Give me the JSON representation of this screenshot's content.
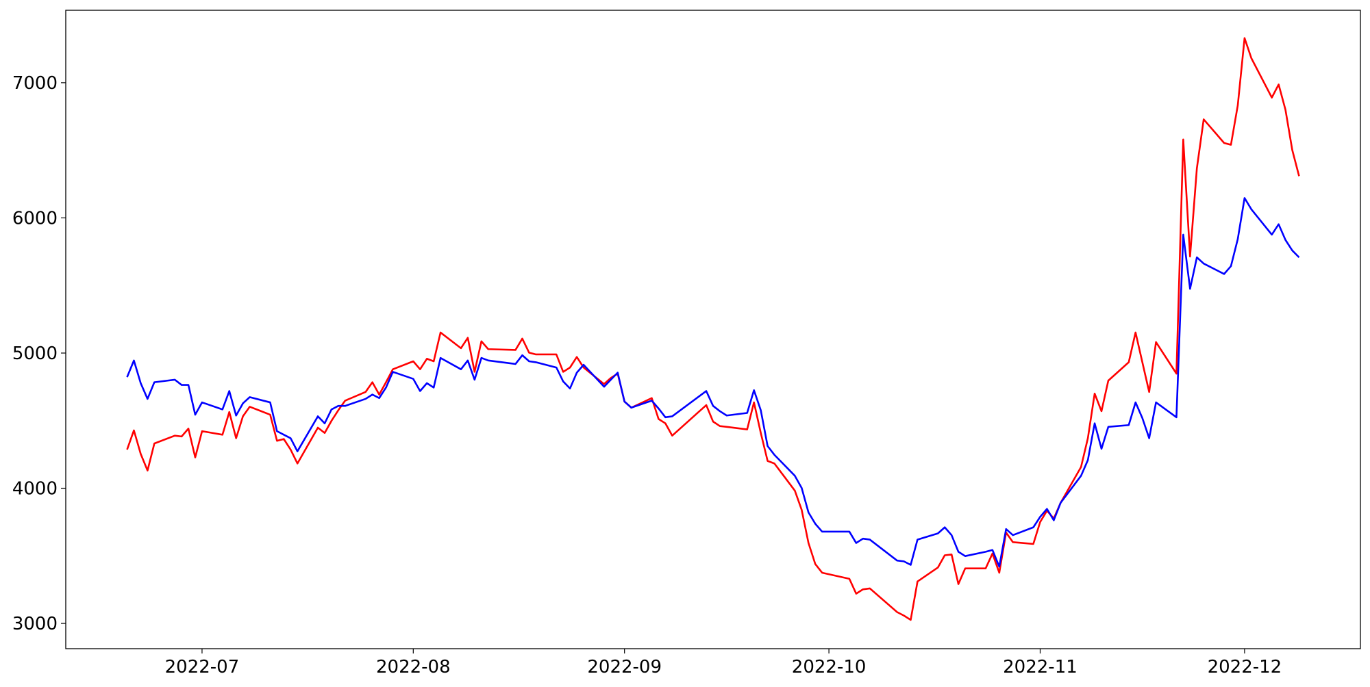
{
  "chart_data": {
    "type": "line",
    "x": [
      "2022-06-20",
      "2022-06-21",
      "2022-06-22",
      "2022-06-23",
      "2022-06-24",
      "2022-06-27",
      "2022-06-28",
      "2022-06-29",
      "2022-06-30",
      "2022-07-01",
      "2022-07-04",
      "2022-07-05",
      "2022-07-06",
      "2022-07-07",
      "2022-07-08",
      "2022-07-11",
      "2022-07-12",
      "2022-07-13",
      "2022-07-14",
      "2022-07-15",
      "2022-07-18",
      "2022-07-19",
      "2022-07-20",
      "2022-07-21",
      "2022-07-22",
      "2022-07-25",
      "2022-07-26",
      "2022-07-27",
      "2022-07-28",
      "2022-07-29",
      "2022-08-01",
      "2022-08-02",
      "2022-08-03",
      "2022-08-04",
      "2022-08-05",
      "2022-08-08",
      "2022-08-09",
      "2022-08-10",
      "2022-08-11",
      "2022-08-12",
      "2022-08-16",
      "2022-08-17",
      "2022-08-18",
      "2022-08-19",
      "2022-08-22",
      "2022-08-23",
      "2022-08-24",
      "2022-08-25",
      "2022-08-26",
      "2022-08-29",
      "2022-08-30",
      "2022-08-31",
      "2022-09-01",
      "2022-09-02",
      "2022-09-05",
      "2022-09-06",
      "2022-09-07",
      "2022-09-08",
      "2022-09-13",
      "2022-09-14",
      "2022-09-15",
      "2022-09-16",
      "2022-09-19",
      "2022-09-20",
      "2022-09-21",
      "2022-09-22",
      "2022-09-23",
      "2022-09-26",
      "2022-09-27",
      "2022-09-28",
      "2022-09-29",
      "2022-09-30",
      "2022-10-04",
      "2022-10-05",
      "2022-10-06",
      "2022-10-07",
      "2022-10-11",
      "2022-10-12",
      "2022-10-13",
      "2022-10-14",
      "2022-10-17",
      "2022-10-18",
      "2022-10-19",
      "2022-10-20",
      "2022-10-21",
      "2022-10-24",
      "2022-10-25",
      "2022-10-26",
      "2022-10-27",
      "2022-10-28",
      "2022-10-31",
      "2022-11-01",
      "2022-11-02",
      "2022-11-03",
      "2022-11-04",
      "2022-11-07",
      "2022-11-08",
      "2022-11-09",
      "2022-11-10",
      "2022-11-11",
      "2022-11-14",
      "2022-11-15",
      "2022-11-16",
      "2022-11-17",
      "2022-11-18",
      "2022-11-21",
      "2022-11-22",
      "2022-11-23",
      "2022-11-24",
      "2022-11-25",
      "2022-11-28",
      "2022-11-29",
      "2022-11-30",
      "2022-12-01",
      "2022-12-02",
      "2022-12-05",
      "2022-12-06",
      "2022-12-07",
      "2022-12-08",
      "2022-12-09"
    ],
    "series": [
      {
        "color": "#ff0000",
        "values": [
          4286,
          4428,
          4254,
          4131,
          4331,
          4389,
          4383,
          4441,
          4228,
          4422,
          4396,
          4564,
          4370,
          4532,
          4603,
          4544,
          4351,
          4364,
          4286,
          4183,
          4448,
          4409,
          4499,
          4577,
          4648,
          4712,
          4784,
          4693,
          4784,
          4880,
          4939,
          4880,
          4958,
          4939,
          5152,
          5036,
          5113,
          4861,
          5087,
          5029,
          5023,
          5107,
          5003,
          4990,
          4990,
          4861,
          4893,
          4971,
          4893,
          4771,
          4816,
          4848,
          4641,
          4596,
          4667,
          4512,
          4480,
          4389,
          4615,
          4493,
          4460,
          4454,
          4435,
          4635,
          4409,
          4202,
          4183,
          3982,
          3840,
          3595,
          3439,
          3375,
          3330,
          3220,
          3252,
          3259,
          3084,
          3058,
          3026,
          3310,
          3414,
          3504,
          3510,
          3291,
          3407,
          3407,
          3517,
          3375,
          3672,
          3601,
          3588,
          3750,
          3834,
          3776,
          3892,
          4157,
          4370,
          4700,
          4570,
          4796,
          4932,
          5152,
          4932,
          4712,
          5081,
          4848,
          6580,
          5714,
          6367,
          6729,
          6554,
          6541,
          6832,
          7330,
          7181,
          6890,
          6987,
          6800,
          6502,
          6309
        ]
      },
      {
        "color": "#0000ff",
        "values": [
          4822,
          4945,
          4777,
          4661,
          4784,
          4803,
          4764,
          4764,
          4544,
          4635,
          4583,
          4719,
          4538,
          4628,
          4674,
          4635,
          4422,
          4396,
          4370,
          4273,
          4532,
          4480,
          4583,
          4609,
          4609,
          4661,
          4693,
          4667,
          4745,
          4861,
          4809,
          4719,
          4777,
          4745,
          4964,
          4880,
          4945,
          4803,
          4964,
          4945,
          4919,
          4984,
          4939,
          4932,
          4893,
          4790,
          4738,
          4855,
          4913,
          4751,
          4803,
          4855,
          4641,
          4596,
          4648,
          4590,
          4525,
          4532,
          4719,
          4609,
          4570,
          4538,
          4557,
          4725,
          4577,
          4312,
          4247,
          4092,
          4002,
          3821,
          3737,
          3679,
          3679,
          3595,
          3627,
          3620,
          3465,
          3459,
          3433,
          3620,
          3666,
          3711,
          3653,
          3530,
          3498,
          3530,
          3543,
          3420,
          3698,
          3653,
          3711,
          3788,
          3847,
          3763,
          3892,
          4092,
          4208,
          4480,
          4292,
          4454,
          4467,
          4635,
          4519,
          4370,
          4635,
          4525,
          5876,
          5475,
          5708,
          5662,
          5585,
          5643,
          5843,
          6147,
          6063,
          5876,
          5953,
          5837,
          5759,
          5708
        ]
      }
    ],
    "xlim": [
      "2022-06-11",
      "2022-12-18"
    ],
    "xticks": [
      {
        "value": "2022-07-01",
        "label": "2022-07"
      },
      {
        "value": "2022-08-01",
        "label": "2022-08"
      },
      {
        "value": "2022-09-01",
        "label": "2022-09"
      },
      {
        "value": "2022-10-01",
        "label": "2022-10"
      },
      {
        "value": "2022-11-01",
        "label": "2022-11"
      },
      {
        "value": "2022-12-01",
        "label": "2022-12"
      }
    ],
    "ylim": [
      2813,
      7536
    ],
    "yticks": [
      3000,
      4000,
      5000,
      6000,
      7000
    ]
  }
}
